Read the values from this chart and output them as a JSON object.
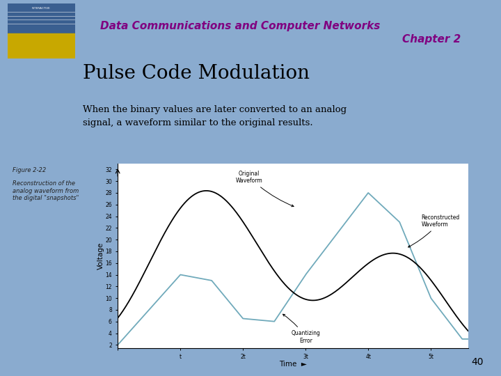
{
  "title_line1": "Data Communications and Computer Networks",
  "title_line2": "Chapter 2",
  "slide_title": "Pulse Code Modulation",
  "body_text": "When the binary values are later converted to an analog\nsignal, a waveform similar to the original results.",
  "fig_label": "Figure 2-22",
  "fig_caption": "Reconstruction of the\nanalog waveform from\nthe digital \"snapshots\"",
  "xlabel": "Time",
  "ylabel": "Voltage",
  "yticks": [
    2,
    4,
    6,
    8,
    10,
    12,
    14,
    16,
    18,
    20,
    22,
    24,
    26,
    28,
    30,
    32
  ],
  "xtick_labels": [
    "",
    "t",
    "2t",
    "3t",
    "4t",
    "5t"
  ],
  "ylim": [
    1.5,
    33
  ],
  "xlim": [
    0,
    5.6
  ],
  "slide_bg": "#8aabcf",
  "plot_bg": "#ffffff",
  "title_color": "#800080",
  "slide_title_color": "#000000",
  "body_color": "#000000",
  "page_number": "40",
  "original_color": "#000000",
  "reconstructed_color": "#70aabb",
  "annotation_color": "#000000",
  "bottom_bar_color": "#b0c8e0"
}
